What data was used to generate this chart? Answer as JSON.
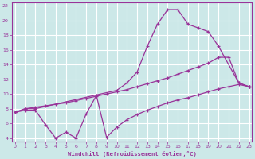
{
  "bg_color": "#cce8e8",
  "grid_color": "#ffffff",
  "line_color": "#993399",
  "title": "Windchill (Refroidissement éolien,°C)",
  "xlim": [
    -0.3,
    23.3
  ],
  "ylim": [
    3.5,
    22.5
  ],
  "xticks": [
    0,
    1,
    2,
    3,
    4,
    5,
    6,
    7,
    8,
    9,
    10,
    11,
    12,
    13,
    14,
    15,
    16,
    17,
    18,
    19,
    20,
    21,
    22,
    23
  ],
  "yticks": [
    4,
    6,
    8,
    10,
    12,
    14,
    16,
    18,
    20,
    22
  ],
  "line_top_x": [
    0,
    1,
    2,
    10,
    11,
    12,
    13,
    14,
    15,
    16,
    17,
    18,
    19,
    20,
    22,
    23
  ],
  "line_top_y": [
    7.5,
    8.0,
    8.0,
    10.5,
    11.5,
    13.0,
    16.5,
    19.5,
    21.5,
    21.5,
    19.5,
    19.0,
    18.5,
    16.5,
    11.5,
    11.0
  ],
  "line_mid_x": [
    0,
    1,
    2,
    3,
    4,
    5,
    6,
    7,
    8,
    9,
    10,
    11,
    12,
    13,
    14,
    15,
    16,
    17,
    18,
    19,
    20,
    21,
    22,
    23
  ],
  "line_mid_y": [
    7.5,
    8.0,
    8.2,
    8.4,
    8.6,
    8.8,
    9.1,
    9.4,
    9.7,
    10.0,
    10.3,
    10.6,
    11.0,
    11.4,
    11.8,
    12.2,
    12.7,
    13.2,
    13.7,
    14.2,
    15.0,
    15.0,
    11.5,
    11.0
  ],
  "line_low_x": [
    0,
    1,
    2,
    3,
    4,
    5,
    6,
    7,
    8,
    9,
    10,
    11,
    12,
    13,
    14,
    15,
    16,
    17,
    18,
    19,
    20,
    21,
    22,
    23
  ],
  "line_low_y": [
    7.5,
    7.8,
    7.8,
    5.8,
    4.0,
    4.8,
    4.0,
    7.3,
    9.8,
    4.1,
    5.5,
    6.5,
    7.2,
    7.8,
    8.3,
    8.8,
    9.2,
    9.5,
    9.9,
    10.3,
    10.7,
    11.0,
    11.3,
    11.0
  ]
}
